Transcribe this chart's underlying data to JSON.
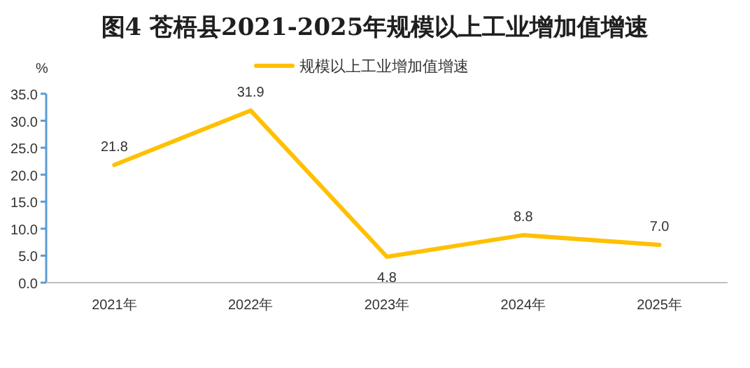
{
  "chart_data": {
    "type": "line",
    "title": "图4  苍梧县2021-2025年规模以上工业增加值增速",
    "ylabel": "%",
    "categories": [
      "2021年",
      "2022年",
      "2023年",
      "2024年",
      "2025年"
    ],
    "series": [
      {
        "name": "规模以上工业增加值增速",
        "color": "#ffc000",
        "values": [
          21.8,
          31.9,
          4.8,
          8.8,
          7.0
        ],
        "value_labels": [
          "21.8",
          "31.9",
          "4.8",
          "8.8",
          "7.0"
        ]
      }
    ],
    "ylim": [
      0,
      35
    ],
    "yticks": [
      {
        "value": 0,
        "label": "0.0"
      },
      {
        "value": 5,
        "label": "5.0"
      },
      {
        "value": 10,
        "label": "10.0"
      },
      {
        "value": 15,
        "label": "15.0"
      },
      {
        "value": 20,
        "label": "20.0"
      },
      {
        "value": 25,
        "label": "25.0"
      },
      {
        "value": 30,
        "label": "30.0"
      },
      {
        "value": 35,
        "label": "35.0"
      }
    ],
    "legend": "top",
    "grid": false,
    "marker": "none",
    "line_style": "solid"
  }
}
